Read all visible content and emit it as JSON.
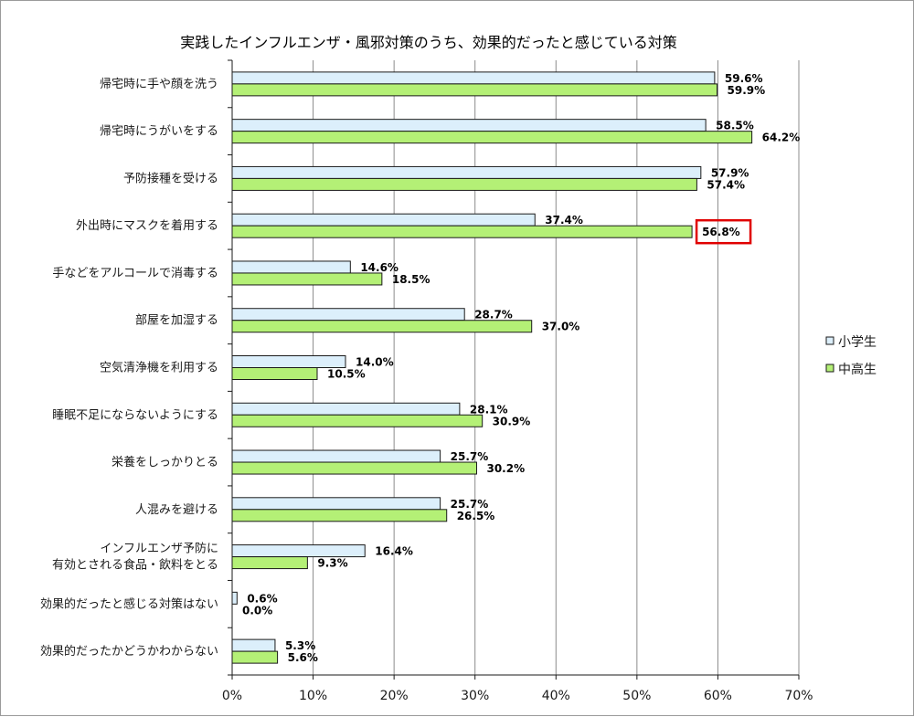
{
  "chart_data": {
    "type": "bar",
    "orientation": "horizontal",
    "title": "実践したインフルエンザ・風邪対策のうち、効果的だったと感じている対策",
    "categories": [
      [
        "帰宅時に手や顔を洗う"
      ],
      [
        "帰宅時にうがいをする"
      ],
      [
        "予防接種を受ける"
      ],
      [
        "外出時にマスクを着用する"
      ],
      [
        "手などをアルコールで消毒する"
      ],
      [
        "部屋を加湿する"
      ],
      [
        "空気清浄機を利用する"
      ],
      [
        "睡眠不足にならないようにする"
      ],
      [
        "栄養をしっかりとる"
      ],
      [
        "人混みを避ける"
      ],
      [
        "インフルエンザ予防に",
        "有効とされる食品・飲料をとる"
      ],
      [
        "効果的だったと感じる対策はない"
      ],
      [
        "効果的だったかどうかわからない"
      ]
    ],
    "series": [
      {
        "name": "小学生",
        "color": "#DCEFFB",
        "values": [
          59.6,
          58.5,
          57.9,
          37.4,
          14.6,
          28.7,
          14.0,
          28.1,
          25.7,
          25.7,
          16.4,
          0.6,
          5.3
        ],
        "labels": [
          "59.6%",
          "58.5%",
          "57.9%",
          "37.4%",
          "14.6%",
          "28.7%",
          "14.0%",
          "28.1%",
          "25.7%",
          "25.7%",
          "16.4%",
          "0.6%",
          "5.3%"
        ]
      },
      {
        "name": "中高生",
        "color": "#B4F076",
        "values": [
          59.9,
          64.2,
          57.4,
          56.8,
          18.5,
          37.0,
          10.5,
          30.9,
          30.2,
          26.5,
          9.3,
          0.0,
          5.6
        ],
        "labels": [
          "59.9%",
          "64.2%",
          "57.4%",
          "56.8%",
          "18.5%",
          "37.0%",
          "10.5%",
          "30.9%",
          "30.2%",
          "26.5%",
          "9.3%",
          "0.0%",
          "5.6%"
        ]
      }
    ],
    "xlim": [
      0,
      70
    ],
    "xticks": [
      "0%",
      "10%",
      "20%",
      "30%",
      "40%",
      "50%",
      "60%",
      "70%"
    ],
    "grid": true,
    "legend_position": "right",
    "highlight": {
      "series": 1,
      "category": 3,
      "color": "#E00000"
    }
  }
}
